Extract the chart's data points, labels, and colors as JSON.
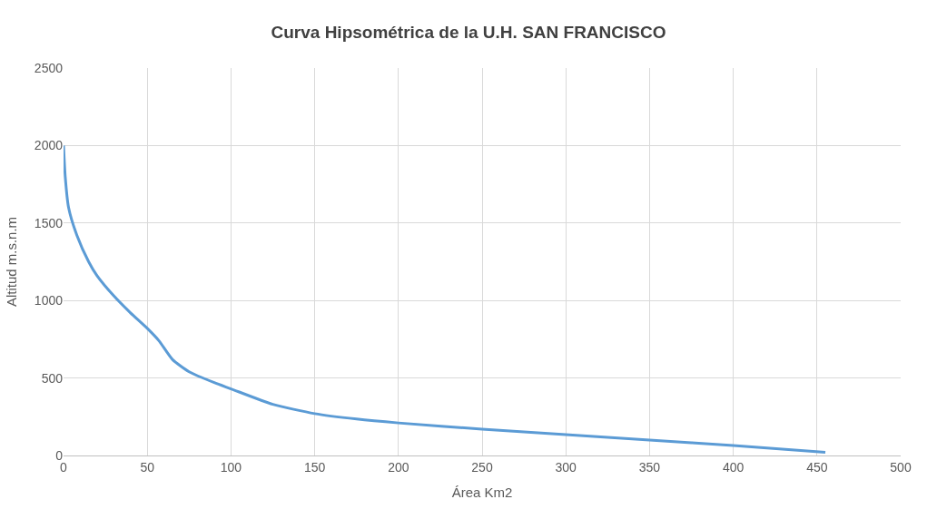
{
  "chart_data": {
    "type": "line",
    "title": "Curva Hipsométrica de la U.H. SAN FRANCISCO",
    "xlabel": "Área Km2",
    "ylabel": "Altitud m.s.n.m",
    "x": [
      0,
      1,
      3,
      8,
      15,
      20,
      30,
      40,
      50,
      57,
      65,
      75,
      90,
      100,
      125,
      150,
      175,
      200,
      250,
      300,
      350,
      400,
      455
    ],
    "series": [
      {
        "color": "#5b9bd5",
        "values": [
          2000,
          1800,
          1600,
          1420,
          1250,
          1160,
          1030,
          920,
          820,
          740,
          620,
          540,
          470,
          430,
          330,
          270,
          235,
          210,
          170,
          135,
          100,
          65,
          20
        ]
      }
    ],
    "xlim": [
      0,
      500
    ],
    "xticks": [
      0,
      50,
      100,
      150,
      200,
      250,
      300,
      350,
      400,
      450,
      500
    ],
    "ylim": [
      0,
      2500
    ],
    "yticks": [
      0,
      500,
      1000,
      1500,
      2000,
      2500
    ],
    "grid": true,
    "marker": "none",
    "line_style": "solid"
  }
}
